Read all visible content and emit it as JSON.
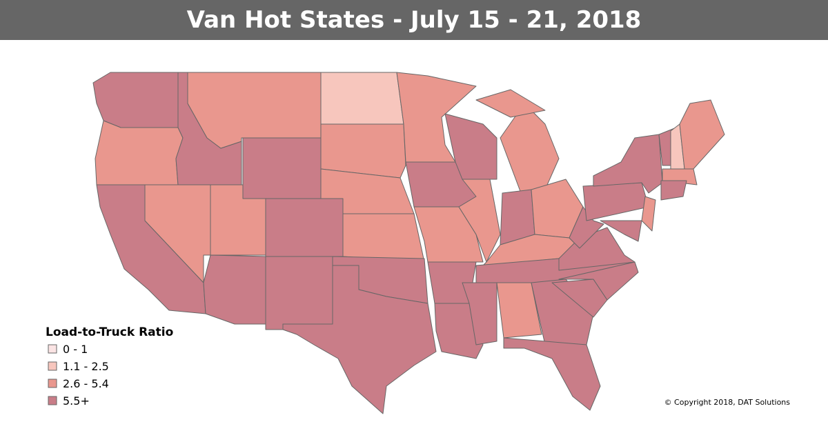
{
  "header": {
    "title": "Van Hot States - July 15 - 21, 2018"
  },
  "legend": {
    "title": "Load-to-Truck Ratio",
    "items": [
      {
        "label": "0 - 1",
        "color": "#fbe4e4"
      },
      {
        "label": "1.1 - 2.5",
        "color": "#f7c6bd"
      },
      {
        "label": "2.6 - 5.4",
        "color": "#e9978e"
      },
      {
        "label": "5.5+",
        "color": "#c97d88"
      }
    ]
  },
  "copyright": "© Copyright 2018, DAT Solutions"
}
